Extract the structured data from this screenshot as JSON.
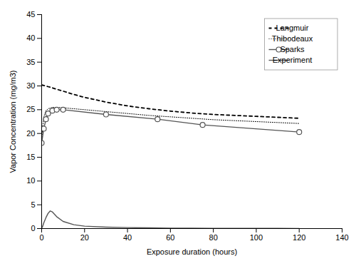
{
  "chart_data": {
    "type": "line",
    "xlabel": "Exposure duration (hours)",
    "ylabel": "Vapor Concentration (mg/m3)",
    "xlim": [
      0,
      140
    ],
    "ylim": [
      0,
      45
    ],
    "xticks": [
      0,
      20,
      40,
      60,
      80,
      100,
      120,
      140
    ],
    "yticks": [
      0,
      5,
      10,
      15,
      20,
      25,
      30,
      35,
      40,
      45
    ],
    "grid": false,
    "legend": "upper right",
    "series": [
      {
        "name": "Langmuir",
        "color": "#000000",
        "line_style": "dashed",
        "x": [
          0,
          0.5,
          1,
          2,
          3,
          5,
          7,
          10,
          15,
          20,
          30,
          40,
          50,
          60,
          70,
          80,
          90,
          100,
          110,
          120
        ],
        "values": [
          30.2,
          30.15,
          30.1,
          30.0,
          29.85,
          29.6,
          29.3,
          28.9,
          28.2,
          27.6,
          26.6,
          25.8,
          25.2,
          24.7,
          24.3,
          24.0,
          23.8,
          23.6,
          23.4,
          23.2
        ]
      },
      {
        "name": "Thibodeaux",
        "color": "#000000",
        "line_style": "dotted",
        "x": [
          0,
          0.5,
          1,
          2,
          3,
          5,
          7,
          10,
          15,
          20,
          30,
          40,
          50,
          60,
          70,
          80,
          90,
          100,
          110,
          120
        ],
        "values": [
          18.0,
          21.5,
          23.5,
          24.8,
          25.2,
          25.5,
          25.5,
          25.4,
          25.2,
          25.0,
          24.6,
          24.2,
          23.8,
          23.5,
          23.2,
          22.9,
          22.7,
          22.5,
          22.3,
          22.1
        ]
      },
      {
        "name": "Sparks",
        "color": "#555555",
        "line_style": "solid",
        "marker": "circle",
        "x": [
          0,
          1,
          2,
          3,
          5,
          7,
          10,
          30,
          54,
          75,
          120
        ],
        "values": [
          18.0,
          21.0,
          23.0,
          24.2,
          24.8,
          25.0,
          25.0,
          24.0,
          23.0,
          21.8,
          20.3
        ]
      },
      {
        "name": "Experiment",
        "color": "#555555",
        "line_style": "solid",
        "x": [
          0,
          0.5,
          1,
          2,
          3,
          4,
          5,
          7,
          10,
          15,
          20,
          30,
          40,
          50,
          60,
          70,
          80,
          90,
          100,
          110,
          120
        ],
        "values": [
          0.05,
          0.5,
          1.2,
          2.3,
          3.2,
          3.7,
          3.5,
          2.5,
          1.5,
          0.8,
          0.5,
          0.3,
          0.2,
          0.15,
          0.1,
          0.08,
          0.06,
          0.05,
          0.04,
          0.03,
          0.02
        ]
      }
    ]
  }
}
